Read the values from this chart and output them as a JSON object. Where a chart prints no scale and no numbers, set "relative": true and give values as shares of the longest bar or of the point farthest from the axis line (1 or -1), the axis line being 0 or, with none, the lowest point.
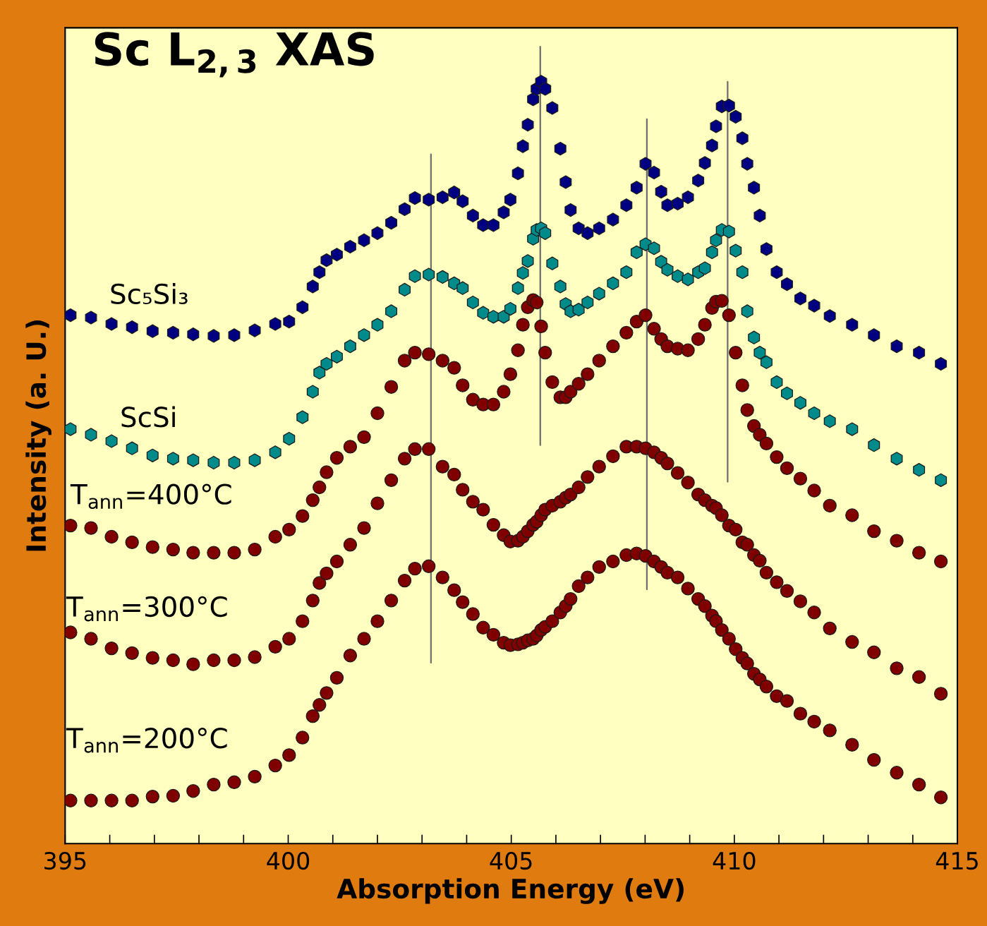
{
  "chart_data": {
    "type": "scatter",
    "title": "Sc L$_{2,3}$ XAS",
    "xlabel": "Absorption Energy (eV)",
    "ylabel": "Intensity (a. U.)",
    "relative": true,
    "grid": false,
    "tick_labels": "x",
    "xlim": [
      395,
      415
    ],
    "xticks": [
      395,
      {
        "value": 396,
        "label": null
      },
      {
        "value": 397,
        "label": null
      },
      {
        "value": 398,
        "label": null
      },
      {
        "value": 399,
        "label": null
      },
      400,
      {
        "value": 401,
        "label": null
      },
      {
        "value": 402,
        "label": null
      },
      {
        "value": 403,
        "label": null
      },
      {
        "value": 404,
        "label": null
      },
      405,
      {
        "value": 406,
        "label": null
      },
      {
        "value": 407,
        "label": null
      },
      {
        "value": 408,
        "label": null
      },
      {
        "value": 409,
        "label": null
      },
      410,
      {
        "value": 411,
        "label": null
      },
      {
        "value": 412,
        "label": null
      },
      {
        "value": 413,
        "label": null
      },
      {
        "value": 414,
        "label": null
      },
      415
    ],
    "x": [
      395.12,
      395.58,
      396.04,
      396.5,
      396.96,
      397.42,
      397.87,
      398.33,
      398.79,
      399.25,
      399.71,
      400.02,
      400.32,
      400.55,
      400.7,
      400.86,
      401.09,
      401.39,
      401.7,
      402.0,
      402.31,
      402.61,
      402.84,
      403.15,
      403.46,
      403.72,
      403.91,
      404.14,
      404.37,
      404.6,
      404.83,
      404.98,
      405.15,
      405.26,
      405.37,
      405.49,
      405.57,
      405.67,
      405.76,
      405.92,
      406.1,
      406.22,
      406.33,
      406.51,
      406.71,
      406.97,
      407.28,
      407.58,
      407.81,
      408.01,
      408.2,
      408.36,
      408.5,
      408.73,
      408.96,
      409.19,
      409.34,
      409.5,
      409.59,
      409.72,
      409.88,
      410.03,
      410.18,
      410.29,
      410.44,
      410.57,
      410.72,
      410.95,
      411.18,
      411.48,
      411.79,
      412.14,
      412.64,
      413.13,
      413.64,
      414.14,
      414.63
    ],
    "series": [
      {
        "name": "Sc₅Si₃",
        "color": "#000080",
        "values": [
          0.663,
          0.66,
          0.652,
          0.648,
          0.643,
          0.641,
          0.639,
          0.637,
          0.638,
          0.644,
          0.652,
          0.655,
          0.673,
          0.699,
          0.717,
          0.732,
          0.739,
          0.749,
          0.757,
          0.766,
          0.779,
          0.796,
          0.81,
          0.808,
          0.811,
          0.817,
          0.806,
          0.788,
          0.776,
          0.776,
          0.792,
          0.808,
          0.841,
          0.875,
          0.902,
          0.934,
          0.947,
          0.956,
          0.947,
          0.923,
          0.872,
          0.83,
          0.795,
          0.772,
          0.766,
          0.772,
          0.783,
          0.801,
          0.823,
          0.853,
          0.842,
          0.818,
          0.801,
          0.803,
          0.811,
          0.832,
          0.854,
          0.876,
          0.9,
          0.925,
          0.926,
          0.912,
          0.885,
          0.853,
          0.823,
          0.788,
          0.746,
          0.717,
          0.702,
          0.684,
          0.675,
          0.662,
          0.651,
          0.638,
          0.624,
          0.616,
          0.602
        ]
      },
      {
        "name": "ScSi",
        "color": "#008b8b",
        "values": [
          0.52,
          0.513,
          0.505,
          0.496,
          0.487,
          0.483,
          0.481,
          0.478,
          0.478,
          0.481,
          0.491,
          0.508,
          0.535,
          0.567,
          0.591,
          0.602,
          0.611,
          0.624,
          0.638,
          0.651,
          0.668,
          0.695,
          0.712,
          0.714,
          0.711,
          0.703,
          0.697,
          0.679,
          0.666,
          0.661,
          0.661,
          0.671,
          0.697,
          0.716,
          0.731,
          0.759,
          0.77,
          0.772,
          0.766,
          0.728,
          0.699,
          0.677,
          0.668,
          0.67,
          0.679,
          0.69,
          0.703,
          0.717,
          0.742,
          0.752,
          0.747,
          0.73,
          0.72,
          0.712,
          0.708,
          0.717,
          0.722,
          0.742,
          0.757,
          0.77,
          0.768,
          0.744,
          0.717,
          0.668,
          0.635,
          0.616,
          0.604,
          0.579,
          0.565,
          0.553,
          0.54,
          0.53,
          0.52,
          0.5,
          0.483,
          0.469,
          0.456
        ]
      },
      {
        "name": "T$_{ann}$=400°C",
        "color": "#800000",
        "marker": "circle",
        "values": [
          0.399,
          0.396,
          0.385,
          0.378,
          0.372,
          0.369,
          0.365,
          0.365,
          0.365,
          0.369,
          0.385,
          0.394,
          0.411,
          0.431,
          0.447,
          0.466,
          0.484,
          0.498,
          0.51,
          0.54,
          0.573,
          0.606,
          0.616,
          0.614,
          0.606,
          0.597,
          0.575,
          0.557,
          0.551,
          0.551,
          0.567,
          0.589,
          0.619,
          0.651,
          0.673,
          0.682,
          0.679,
          0.649,
          0.616,
          0.579,
          0.56,
          0.56,
          0.567,
          0.577,
          0.589,
          0.606,
          0.624,
          0.641,
          0.655,
          0.663,
          0.646,
          0.633,
          0.624,
          0.621,
          0.619,
          0.633,
          0.651,
          0.672,
          0.68,
          0.681,
          0.663,
          0.616,
          0.575,
          0.544,
          0.524,
          0.513,
          0.502,
          0.485,
          0.471,
          0.458,
          0.443,
          0.424,
          0.412,
          0.392,
          0.38,
          0.365,
          0.354
        ]
      },
      {
        "name": "T$_{ann}$=300°C",
        "color": "#800000",
        "marker": "circle",
        "values": [
          0.265,
          0.257,
          0.245,
          0.239,
          0.233,
          0.23,
          0.225,
          0.23,
          0.23,
          0.234,
          0.247,
          0.257,
          0.279,
          0.305,
          0.327,
          0.339,
          0.354,
          0.375,
          0.396,
          0.427,
          0.456,
          0.483,
          0.495,
          0.495,
          0.473,
          0.463,
          0.444,
          0.429,
          0.419,
          0.4,
          0.387,
          0.379,
          0.38,
          0.385,
          0.392,
          0.4,
          0.404,
          0.412,
          0.419,
          0.424,
          0.429,
          0.434,
          0.438,
          0.447,
          0.46,
          0.473,
          0.486,
          0.498,
          0.498,
          0.496,
          0.491,
          0.484,
          0.477,
          0.465,
          0.453,
          0.438,
          0.431,
          0.424,
          0.421,
          0.412,
          0.399,
          0.394,
          0.378,
          0.375,
          0.362,
          0.355,
          0.34,
          0.328,
          0.317,
          0.304,
          0.29,
          0.27,
          0.253,
          0.24,
          0.22,
          0.209,
          0.188
        ]
      },
      {
        "name": "T$_{ann}$=200°C",
        "color": "#800000",
        "marker": "circle",
        "values": [
          0.054,
          0.054,
          0.054,
          0.054,
          0.059,
          0.06,
          0.066,
          0.074,
          0.077,
          0.084,
          0.098,
          0.111,
          0.133,
          0.16,
          0.174,
          0.189,
          0.208,
          0.236,
          0.257,
          0.279,
          0.305,
          0.33,
          0.345,
          0.348,
          0.334,
          0.318,
          0.303,
          0.288,
          0.271,
          0.262,
          0.252,
          0.249,
          0.25,
          0.252,
          0.255,
          0.257,
          0.261,
          0.268,
          0.272,
          0.279,
          0.29,
          0.298,
          0.307,
          0.323,
          0.334,
          0.347,
          0.354,
          0.362,
          0.364,
          0.361,
          0.354,
          0.347,
          0.34,
          0.334,
          0.32,
          0.307,
          0.298,
          0.286,
          0.279,
          0.268,
          0.257,
          0.244,
          0.233,
          0.226,
          0.213,
          0.206,
          0.197,
          0.185,
          0.179,
          0.163,
          0.153,
          0.142,
          0.124,
          0.105,
          0.089,
          0.074,
          0.058
        ]
      },
      {
        "type": "line",
        "color": "#6e6e6e",
        "line_style": "solid",
        "x": [
          403.2,
          403.2
        ],
        "values": [
          0.227,
          0.865
        ]
      },
      {
        "type": "line",
        "color": "#6e6e6e",
        "line_style": "solid",
        "x": [
          405.65,
          405.65
        ],
        "values": [
          0.5,
          1.0
        ]
      },
      {
        "type": "line",
        "color": "#6e6e6e",
        "line_style": "solid",
        "x": [
          408.04,
          408.04
        ],
        "values": [
          0.319,
          0.909
        ]
      },
      {
        "type": "line",
        "color": "#6e6e6e",
        "line_style": "solid",
        "x": [
          409.85,
          409.85
        ],
        "values": [
          0.454,
          0.956
        ]
      }
    ]
  }
}
